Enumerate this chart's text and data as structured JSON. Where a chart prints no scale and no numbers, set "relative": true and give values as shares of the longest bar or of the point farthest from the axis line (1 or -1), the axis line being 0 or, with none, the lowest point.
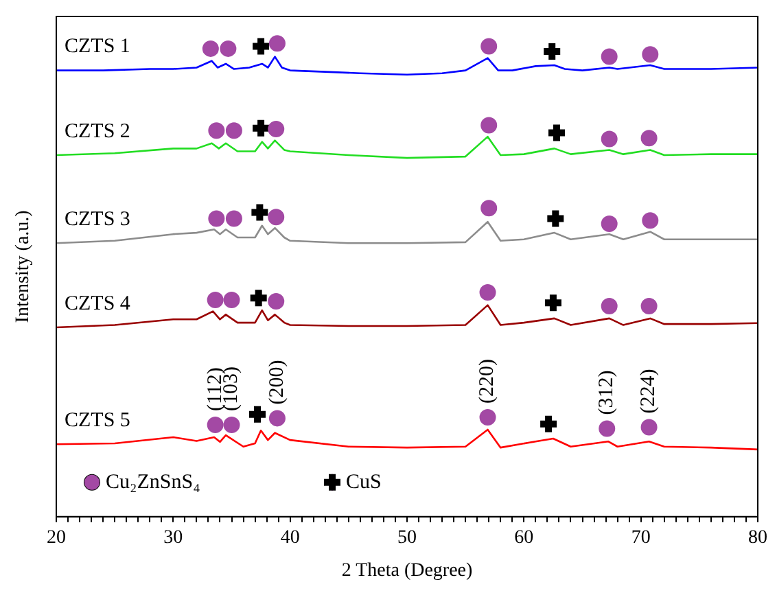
{
  "chart_data": {
    "type": "line",
    "relative": true,
    "xlabel": "2 Theta (Degree)",
    "ylabel": "Intensity (a.u.)",
    "xlim": [
      20,
      80
    ],
    "xticks": [
      20,
      {
        "value": 21,
        "label": null
      },
      {
        "value": 22,
        "label": null
      },
      {
        "value": 23,
        "label": null
      },
      {
        "value": 24,
        "label": null
      },
      {
        "value": 25,
        "label": null
      },
      {
        "value": 26,
        "label": null
      },
      {
        "value": 27,
        "label": null
      },
      {
        "value": 28,
        "label": null
      },
      {
        "value": 29,
        "label": null
      },
      30,
      {
        "value": 31,
        "label": null
      },
      {
        "value": 32,
        "label": null
      },
      {
        "value": 33,
        "label": null
      },
      {
        "value": 34,
        "label": null
      },
      {
        "value": 35,
        "label": null
      },
      {
        "value": 36,
        "label": null
      },
      {
        "value": 37,
        "label": null
      },
      {
        "value": 38,
        "label": null
      },
      {
        "value": 39,
        "label": null
      },
      40,
      {
        "value": 41,
        "label": null
      },
      {
        "value": 42,
        "label": null
      },
      {
        "value": 43,
        "label": null
      },
      {
        "value": 44,
        "label": null
      },
      {
        "value": 45,
        "label": null
      },
      {
        "value": 46,
        "label": null
      },
      {
        "value": 47,
        "label": null
      },
      {
        "value": 48,
        "label": null
      },
      {
        "value": 49,
        "label": null
      },
      50,
      {
        "value": 51,
        "label": null
      },
      {
        "value": 52,
        "label": null
      },
      {
        "value": 53,
        "label": null
      },
      {
        "value": 54,
        "label": null
      },
      {
        "value": 55,
        "label": null
      },
      {
        "value": 56,
        "label": null
      },
      {
        "value": 57,
        "label": null
      },
      {
        "value": 58,
        "label": null
      },
      {
        "value": 59,
        "label": null
      },
      60,
      {
        "value": 61,
        "label": null
      },
      {
        "value": 62,
        "label": null
      },
      {
        "value": 63,
        "label": null
      },
      {
        "value": 64,
        "label": null
      },
      {
        "value": 65,
        "label": null
      },
      {
        "value": 66,
        "label": null
      },
      {
        "value": 67,
        "label": null
      },
      {
        "value": 68,
        "label": null
      },
      {
        "value": 69,
        "label": null
      },
      70,
      {
        "value": 71,
        "label": null
      },
      {
        "value": 72,
        "label": null
      },
      {
        "value": 73,
        "label": null
      },
      {
        "value": 74,
        "label": null
      },
      {
        "value": 75,
        "label": null
      },
      {
        "value": 76,
        "label": null
      },
      {
        "value": 77,
        "label": null
      },
      {
        "value": 78,
        "label": null
      },
      {
        "value": 79,
        "label": null
      },
      80
    ],
    "legend": "bottom left",
    "marker": "none",
    "line_style": "solid",
    "series": [
      {
        "name": "CZTS 1",
        "color": "#0000ff",
        "x": [
          20,
          24,
          28,
          30,
          32,
          33.3,
          33.8,
          34.5,
          35.2,
          36.5,
          37.6,
          38.1,
          38.7,
          39.3,
          40,
          43,
          46,
          50,
          53,
          55,
          56.9,
          57.8,
          59,
          61,
          62.6,
          63.5,
          65,
          67.3,
          68,
          70.8,
          72,
          76,
          80
        ],
        "values": [
          0.943,
          0.943,
          0.946,
          0.946,
          0.949,
          0.963,
          0.949,
          0.957,
          0.946,
          0.949,
          0.957,
          0.949,
          0.972,
          0.949,
          0.943,
          0.94,
          0.937,
          0.934,
          0.937,
          0.943,
          0.969,
          0.943,
          0.943,
          0.952,
          0.954,
          0.946,
          0.943,
          0.949,
          0.946,
          0.954,
          0.946,
          0.946,
          0.949
        ]
      },
      {
        "name": "CZTS 2",
        "color": "#22dd22",
        "x": [
          20,
          25,
          30,
          32,
          33.3,
          33.9,
          34.5,
          35.5,
          37,
          37.6,
          38.1,
          38.7,
          39.5,
          40,
          45,
          50,
          55,
          56.9,
          58,
          60,
          62.6,
          64,
          67.3,
          68.5,
          70.8,
          72,
          76,
          80
        ],
        "values": [
          0.764,
          0.768,
          0.778,
          0.778,
          0.789,
          0.778,
          0.789,
          0.772,
          0.772,
          0.792,
          0.778,
          0.795,
          0.775,
          0.772,
          0.764,
          0.758,
          0.761,
          0.803,
          0.764,
          0.766,
          0.778,
          0.766,
          0.775,
          0.766,
          0.775,
          0.764,
          0.766,
          0.766
        ]
      },
      {
        "name": "CZTS 3",
        "color": "#8c8c8c",
        "x": [
          20,
          25,
          30,
          32,
          33.5,
          34,
          34.5,
          35.5,
          37,
          37.6,
          38.1,
          38.7,
          39.5,
          40,
          45,
          50,
          55,
          56.9,
          58,
          60,
          62.6,
          64,
          67.3,
          68.5,
          70.8,
          72,
          76,
          80
        ],
        "values": [
          0.578,
          0.583,
          0.597,
          0.6,
          0.607,
          0.597,
          0.607,
          0.59,
          0.59,
          0.615,
          0.597,
          0.61,
          0.59,
          0.583,
          0.578,
          0.578,
          0.58,
          0.623,
          0.583,
          0.586,
          0.6,
          0.586,
          0.597,
          0.586,
          0.602,
          0.586,
          0.586,
          0.586
        ]
      },
      {
        "name": "CZTS 4",
        "color": "#990000",
        "x": [
          20,
          25,
          30,
          32,
          33.4,
          34,
          34.5,
          35.5,
          37,
          37.6,
          38.1,
          38.7,
          39.5,
          40,
          45,
          50,
          55,
          56.9,
          58,
          60,
          62.6,
          64,
          67.3,
          68.5,
          70.8,
          72,
          76,
          80
        ],
        "values": [
          0.4,
          0.405,
          0.417,
          0.417,
          0.434,
          0.417,
          0.427,
          0.41,
          0.41,
          0.436,
          0.415,
          0.427,
          0.41,
          0.405,
          0.403,
          0.403,
          0.405,
          0.447,
          0.405,
          0.41,
          0.419,
          0.405,
          0.419,
          0.405,
          0.419,
          0.407,
          0.407,
          0.409
        ]
      },
      {
        "name": "CZTS 5",
        "color": "#ff0000",
        "x": [
          20,
          25,
          30,
          32,
          33.5,
          34,
          34.5,
          36,
          37,
          37.5,
          38.1,
          38.7,
          40,
          45,
          50,
          55,
          56.9,
          58,
          61,
          62.5,
          64,
          67.2,
          68,
          70.7,
          72,
          76,
          80
        ],
        "values": [
          0.153,
          0.155,
          0.168,
          0.16,
          0.168,
          0.158,
          0.172,
          0.148,
          0.155,
          0.182,
          0.162,
          0.177,
          0.162,
          0.148,
          0.146,
          0.148,
          0.184,
          0.146,
          0.159,
          0.165,
          0.148,
          0.159,
          0.148,
          0.159,
          0.148,
          0.146,
          0.142
        ]
      },
      {
        "name": "Cu₂ZnSnS₄",
        "type": "scatter",
        "marker": "circle",
        "color": "#a349a4",
        "x": [
          33.2,
          34.7,
          38.9,
          57.0,
          67.3,
          70.8,
          33.7,
          35.2,
          38.8,
          57.0,
          67.3,
          70.7,
          33.7,
          35.2,
          38.8,
          57.0,
          67.3,
          70.8,
          33.6,
          35.0,
          38.8,
          56.9,
          67.3,
          70.7,
          33.6,
          35.0,
          38.9,
          56.9,
          67.1,
          70.7
        ],
        "values": [
          0.989,
          0.989,
          1.0,
          0.994,
          0.972,
          0.977,
          0.816,
          0.816,
          0.819,
          0.827,
          0.798,
          0.8,
          0.63,
          0.63,
          0.633,
          0.652,
          0.619,
          0.626,
          0.458,
          0.458,
          0.455,
          0.474,
          0.445,
          0.445,
          0.194,
          0.194,
          0.208,
          0.21,
          0.186,
          0.189
        ]
      },
      {
        "name": "CuS",
        "type": "scatter",
        "marker": "cross",
        "color": "#000000",
        "x": [
          37.5,
          62.4,
          37.5,
          62.8,
          37.4,
          62.7,
          37.3,
          62.5,
          37.2,
          62.1
        ],
        "values": [
          0.994,
          0.983,
          0.821,
          0.811,
          0.643,
          0.63,
          0.462,
          0.452,
          0.216,
          0.196
        ]
      }
    ],
    "annotations": [
      "(112)",
      "(103)",
      "(200)",
      "(220)",
      "(312)",
      "(224)"
    ]
  }
}
